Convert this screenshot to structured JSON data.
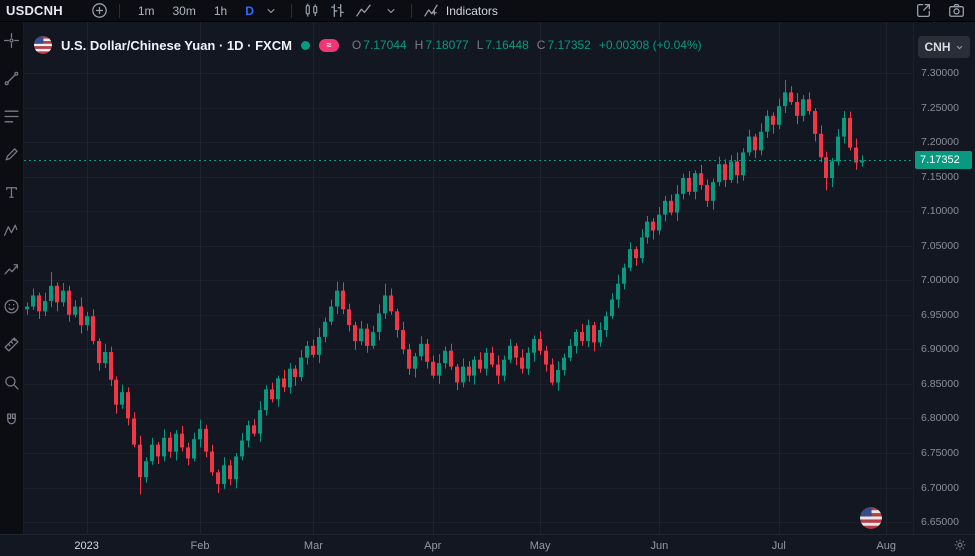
{
  "toolbar": {
    "symbol": "USDCNH",
    "intervals": [
      {
        "label": "1m",
        "active": false
      },
      {
        "label": "30m",
        "active": false
      },
      {
        "label": "1h",
        "active": false
      },
      {
        "label": "D",
        "active": true
      }
    ],
    "indicators_label": "Indicators"
  },
  "chart_header": {
    "title": "U.S. Dollar/Chinese Yuan · 1D · FXCM",
    "ohlc_fields": [
      {
        "label": "O",
        "value": "7.17044"
      },
      {
        "label": "H",
        "value": "7.18077"
      },
      {
        "label": "L",
        "value": "7.16448"
      },
      {
        "label": "C",
        "value": "7.17352"
      }
    ],
    "change": "+0.00308 (+0.04%)"
  },
  "price_axis": {
    "currency_button": "CNH",
    "labels": [
      "7.30000",
      "7.25000",
      "7.20000",
      "7.15000",
      "7.10000",
      "7.05000",
      "7.00000",
      "6.95000",
      "6.90000",
      "6.85000",
      "6.80000",
      "6.75000",
      "6.70000",
      "6.65000"
    ],
    "current_price_label": "7.17352"
  },
  "time_axis": {
    "ticks": [
      {
        "index": 10,
        "label": "2023",
        "year": true
      },
      {
        "index": 29,
        "label": "Feb"
      },
      {
        "index": 48,
        "label": "Mar"
      },
      {
        "index": 68,
        "label": "Apr"
      },
      {
        "index": 86,
        "label": "May"
      },
      {
        "index": 106,
        "label": "Jun"
      },
      {
        "index": 126,
        "label": "Jul"
      },
      {
        "index": 144,
        "label": "Aug"
      }
    ]
  },
  "sidebar": {
    "tools": [
      "crosshair-icon",
      "trendline-icon",
      "fib-retracement-icon",
      "brush-icon",
      "text-icon",
      "xabcd-pattern-icon",
      "forecast-icon",
      "emoji-icon",
      "ruler-icon",
      "zoom-icon",
      "magnet-icon"
    ]
  },
  "colors": {
    "background": "#131722",
    "panel": "#0b0d13",
    "up": "#089981",
    "down": "#f23645",
    "accent_blue": "#2d6bff",
    "price_tag_bg": "#089981",
    "delayed_badge": "#f23674",
    "grid_v": "rgba(255,255,255,0.05)",
    "grid_h": "rgba(255,255,255,0.035)"
  },
  "chart_data": {
    "type": "candlestick",
    "symbol": "USDCNH",
    "description": "U.S. Dollar/Chinese Yuan",
    "interval": "1D",
    "source": "FXCM",
    "current_price": 7.17352,
    "change": 0.00308,
    "change_pct": 0.04,
    "total_slots": 149,
    "y_axis": {
      "price_at_top": 7.3738,
      "price_at_bottom": 6.6327
    },
    "ohlc": [
      [
        6.958,
        6.968,
        6.95,
        6.962
      ],
      [
        6.962,
        6.988,
        6.957,
        6.978
      ],
      [
        6.978,
        6.982,
        6.944,
        6.955
      ],
      [
        6.955,
        6.982,
        6.948,
        6.97
      ],
      [
        6.97,
        7.012,
        6.961,
        6.992
      ],
      [
        6.992,
        6.997,
        6.955,
        6.968
      ],
      [
        6.968,
        6.996,
        6.962,
        6.985
      ],
      [
        6.985,
        6.992,
        6.94,
        6.95
      ],
      [
        6.95,
        6.971,
        6.946,
        6.962
      ],
      [
        6.962,
        6.975,
        6.923,
        6.935
      ],
      [
        6.935,
        6.954,
        6.927,
        6.948
      ],
      [
        6.948,
        6.958,
        6.907,
        6.912
      ],
      [
        6.912,
        6.916,
        6.869,
        6.88
      ],
      [
        6.88,
        6.908,
        6.873,
        6.896
      ],
      [
        6.896,
        6.904,
        6.847,
        6.856
      ],
      [
        6.856,
        6.861,
        6.807,
        6.82
      ],
      [
        6.82,
        6.849,
        6.814,
        6.838
      ],
      [
        6.838,
        6.845,
        6.79,
        6.8
      ],
      [
        6.8,
        6.809,
        6.758,
        6.762
      ],
      [
        6.762,
        6.775,
        6.69,
        6.715
      ],
      [
        6.715,
        6.744,
        6.707,
        6.738
      ],
      [
        6.738,
        6.772,
        6.733,
        6.762
      ],
      [
        6.762,
        6.766,
        6.734,
        6.745
      ],
      [
        6.745,
        6.784,
        6.738,
        6.772
      ],
      [
        6.772,
        6.78,
        6.743,
        6.752
      ],
      [
        6.752,
        6.783,
        6.739,
        6.778
      ],
      [
        6.778,
        6.789,
        6.752,
        6.758
      ],
      [
        6.758,
        6.765,
        6.732,
        6.742
      ],
      [
        6.742,
        6.779,
        6.738,
        6.77
      ],
      [
        6.77,
        6.798,
        6.758,
        6.785
      ],
      [
        6.785,
        6.791,
        6.744,
        6.752
      ],
      [
        6.752,
        6.762,
        6.717,
        6.722
      ],
      [
        6.722,
        6.726,
        6.692,
        6.705
      ],
      [
        6.705,
        6.744,
        6.698,
        6.732
      ],
      [
        6.732,
        6.74,
        6.703,
        6.712
      ],
      [
        6.712,
        6.75,
        6.699,
        6.745
      ],
      [
        6.745,
        6.779,
        6.739,
        6.768
      ],
      [
        6.768,
        6.797,
        6.758,
        6.79
      ],
      [
        6.79,
        6.799,
        6.774,
        6.778
      ],
      [
        6.778,
        6.825,
        6.766,
        6.812
      ],
      [
        6.812,
        6.848,
        6.804,
        6.842
      ],
      [
        6.842,
        6.852,
        6.823,
        6.828
      ],
      [
        6.828,
        6.862,
        6.817,
        6.858
      ],
      [
        6.858,
        6.87,
        6.838,
        6.845
      ],
      [
        6.845,
        6.88,
        6.836,
        6.872
      ],
      [
        6.872,
        6.877,
        6.847,
        6.86
      ],
      [
        6.86,
        6.899,
        6.854,
        6.888
      ],
      [
        6.888,
        6.912,
        6.878,
        6.905
      ],
      [
        6.905,
        6.914,
        6.888,
        6.892
      ],
      [
        6.892,
        6.931,
        6.88,
        6.918
      ],
      [
        6.918,
        6.946,
        6.91,
        6.94
      ],
      [
        6.94,
        6.972,
        6.935,
        6.962
      ],
      [
        6.962,
        6.998,
        6.951,
        6.985
      ],
      [
        6.985,
        6.997,
        6.951,
        6.958
      ],
      [
        6.958,
        6.966,
        6.926,
        6.935
      ],
      [
        6.935,
        6.94,
        6.899,
        6.912
      ],
      [
        6.912,
        6.941,
        6.906,
        6.93
      ],
      [
        6.93,
        6.937,
        6.895,
        6.905
      ],
      [
        6.905,
        6.934,
        6.901,
        6.925
      ],
      [
        6.925,
        6.965,
        6.913,
        6.952
      ],
      [
        6.952,
        6.995,
        6.944,
        6.978
      ],
      [
        6.978,
        6.988,
        6.95,
        6.955
      ],
      [
        6.955,
        6.959,
        6.917,
        6.928
      ],
      [
        6.928,
        6.94,
        6.893,
        6.9
      ],
      [
        6.9,
        6.908,
        6.863,
        6.872
      ],
      [
        6.872,
        6.895,
        6.859,
        6.89
      ],
      [
        6.89,
        6.919,
        6.884,
        6.908
      ],
      [
        6.908,
        6.915,
        6.872,
        6.882
      ],
      [
        6.882,
        6.891,
        6.858,
        6.862
      ],
      [
        6.862,
        6.893,
        6.85,
        6.88
      ],
      [
        6.88,
        6.904,
        6.872,
        6.898
      ],
      [
        6.898,
        6.908,
        6.87,
        6.875
      ],
      [
        6.875,
        6.879,
        6.841,
        6.852
      ],
      [
        6.852,
        6.887,
        6.845,
        6.875
      ],
      [
        6.875,
        6.883,
        6.853,
        6.862
      ],
      [
        6.862,
        6.89,
        6.849,
        6.885
      ],
      [
        6.885,
        6.896,
        6.866,
        6.872
      ],
      [
        6.872,
        6.902,
        6.862,
        6.895
      ],
      [
        6.895,
        6.904,
        6.874,
        6.878
      ],
      [
        6.878,
        6.891,
        6.85,
        6.862
      ],
      [
        6.862,
        6.891,
        6.854,
        6.885
      ],
      [
        6.885,
        6.915,
        6.88,
        6.905
      ],
      [
        6.905,
        6.909,
        6.877,
        6.888
      ],
      [
        6.888,
        6.9,
        6.865,
        6.872
      ],
      [
        6.872,
        6.903,
        6.863,
        6.895
      ],
      [
        6.895,
        6.92,
        6.882,
        6.915
      ],
      [
        6.915,
        6.926,
        6.892,
        6.898
      ],
      [
        6.898,
        6.905,
        6.868,
        6.878
      ],
      [
        6.878,
        6.887,
        6.848,
        6.852
      ],
      [
        6.852,
        6.883,
        6.84,
        6.87
      ],
      [
        6.87,
        6.894,
        6.862,
        6.888
      ],
      [
        6.888,
        6.915,
        6.883,
        6.905
      ],
      [
        6.905,
        6.929,
        6.894,
        6.925
      ],
      [
        6.925,
        6.937,
        6.905,
        6.912
      ],
      [
        6.912,
        6.943,
        6.903,
        6.935
      ],
      [
        6.935,
        6.94,
        6.897,
        6.91
      ],
      [
        6.91,
        6.939,
        6.904,
        6.928
      ],
      [
        6.928,
        6.955,
        6.918,
        6.948
      ],
      [
        6.948,
        6.981,
        6.944,
        6.972
      ],
      [
        6.972,
        7.008,
        6.96,
        6.995
      ],
      [
        6.995,
        7.024,
        6.987,
        7.018
      ],
      [
        7.018,
        7.055,
        7.013,
        7.045
      ],
      [
        7.045,
        7.049,
        7.021,
        7.032
      ],
      [
        7.032,
        7.074,
        7.025,
        7.062
      ],
      [
        7.062,
        7.093,
        7.053,
        7.085
      ],
      [
        7.085,
        7.09,
        7.059,
        7.072
      ],
      [
        7.072,
        7.106,
        7.066,
        7.095
      ],
      [
        7.095,
        7.122,
        7.085,
        7.115
      ],
      [
        7.115,
        7.124,
        7.094,
        7.098
      ],
      [
        7.098,
        7.138,
        7.086,
        7.125
      ],
      [
        7.125,
        7.154,
        7.117,
        7.148
      ],
      [
        7.148,
        7.158,
        7.123,
        7.128
      ],
      [
        7.128,
        7.159,
        7.117,
        7.155
      ],
      [
        7.155,
        7.167,
        7.131,
        7.138
      ],
      [
        7.138,
        7.146,
        7.106,
        7.115
      ],
      [
        7.115,
        7.147,
        7.102,
        7.142
      ],
      [
        7.142,
        7.179,
        7.136,
        7.168
      ],
      [
        7.168,
        7.175,
        7.135,
        7.145
      ],
      [
        7.145,
        7.181,
        7.141,
        7.172
      ],
      [
        7.172,
        7.185,
        7.14,
        7.152
      ],
      [
        7.152,
        7.191,
        7.144,
        7.185
      ],
      [
        7.185,
        7.218,
        7.18,
        7.208
      ],
      [
        7.208,
        7.212,
        7.177,
        7.188
      ],
      [
        7.188,
        7.227,
        7.181,
        7.215
      ],
      [
        7.215,
        7.246,
        7.206,
        7.238
      ],
      [
        7.238,
        7.243,
        7.212,
        7.225
      ],
      [
        7.225,
        7.263,
        7.219,
        7.252
      ],
      [
        7.252,
        7.29,
        7.242,
        7.272
      ],
      [
        7.272,
        7.281,
        7.254,
        7.258
      ],
      [
        7.258,
        7.271,
        7.226,
        7.238
      ],
      [
        7.238,
        7.268,
        7.23,
        7.262
      ],
      [
        7.262,
        7.272,
        7.24,
        7.245
      ],
      [
        7.245,
        7.249,
        7.201,
        7.212
      ],
      [
        7.212,
        7.224,
        7.171,
        7.178
      ],
      [
        7.178,
        7.186,
        7.13,
        7.148
      ],
      [
        7.148,
        7.177,
        7.135,
        7.172
      ],
      [
        7.172,
        7.219,
        7.166,
        7.208
      ],
      [
        7.208,
        7.245,
        7.198,
        7.235
      ],
      [
        7.235,
        7.244,
        7.188,
        7.192
      ],
      [
        7.192,
        7.205,
        7.16,
        7.17044
      ],
      [
        7.17044,
        7.18077,
        7.16448,
        7.17352
      ]
    ]
  }
}
